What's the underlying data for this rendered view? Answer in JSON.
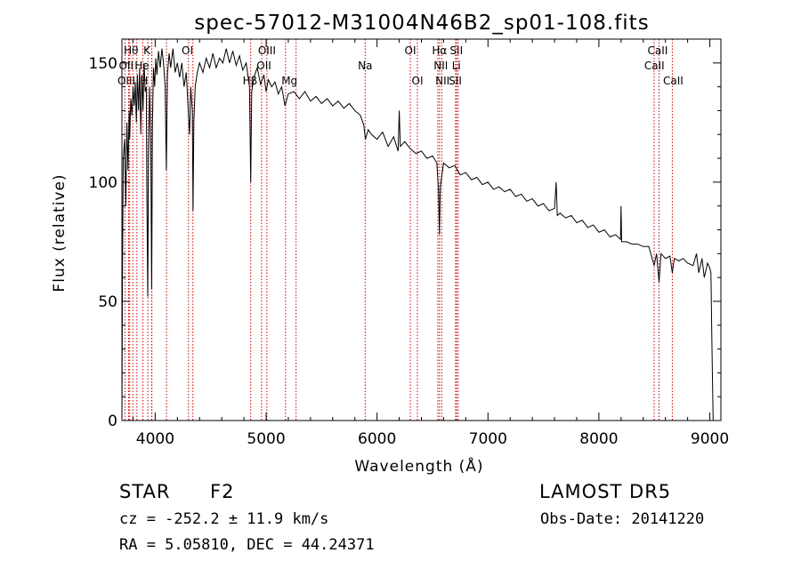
{
  "chart_data": {
    "type": "line",
    "title": "spec-57012-M31004N46B2_sp01-108.fits",
    "xlabel": "Wavelength (Å)",
    "ylabel": "Flux (relative)",
    "xlim": [
      3700,
      9100
    ],
    "ylim": [
      0,
      160
    ],
    "xticks": [
      4000,
      5000,
      6000,
      7000,
      8000,
      9000
    ],
    "yticks": [
      0,
      50,
      100,
      150
    ],
    "grid": false,
    "series": [
      {
        "points": [
          [
            3700,
            0
          ],
          [
            3705,
            60
          ],
          [
            3712,
            110
          ],
          [
            3725,
            118
          ],
          [
            3735,
            90
          ],
          [
            3745,
            125
          ],
          [
            3755,
            105
          ],
          [
            3765,
            130
          ],
          [
            3770,
            118
          ],
          [
            3780,
            135
          ],
          [
            3790,
            128
          ],
          [
            3800,
            140
          ],
          [
            3810,
            132
          ],
          [
            3820,
            142
          ],
          [
            3830,
            125
          ],
          [
            3840,
            145
          ],
          [
            3850,
            130
          ],
          [
            3860,
            148
          ],
          [
            3870,
            120
          ],
          [
            3880,
            145
          ],
          [
            3890,
            130
          ],
          [
            3900,
            150
          ],
          [
            3910,
            138
          ],
          [
            3920,
            140
          ],
          [
            3925,
            95
          ],
          [
            3933,
            52
          ],
          [
            3940,
            110
          ],
          [
            3950,
            140
          ],
          [
            3960,
            118
          ],
          [
            3968,
            55
          ],
          [
            3975,
            125
          ],
          [
            3985,
            148
          ],
          [
            3995,
            140
          ],
          [
            4005,
            152
          ],
          [
            4015,
            145
          ],
          [
            4030,
            155
          ],
          [
            4045,
            148
          ],
          [
            4060,
            156
          ],
          [
            4075,
            150
          ],
          [
            4090,
            140
          ],
          [
            4100,
            105
          ],
          [
            4110,
            145
          ],
          [
            4125,
            154
          ],
          [
            4140,
            148
          ],
          [
            4160,
            156
          ],
          [
            4180,
            146
          ],
          [
            4200,
            150
          ],
          [
            4220,
            144
          ],
          [
            4240,
            150
          ],
          [
            4260,
            140
          ],
          [
            4280,
            146
          ],
          [
            4300,
            128
          ],
          [
            4310,
            120
          ],
          [
            4320,
            140
          ],
          [
            4335,
            130
          ],
          [
            4341,
            88
          ],
          [
            4348,
            125
          ],
          [
            4360,
            140
          ],
          [
            4380,
            146
          ],
          [
            4400,
            150
          ],
          [
            4430,
            146
          ],
          [
            4460,
            152
          ],
          [
            4490,
            148
          ],
          [
            4520,
            154
          ],
          [
            4550,
            148
          ],
          [
            4580,
            152
          ],
          [
            4610,
            150
          ],
          [
            4640,
            156
          ],
          [
            4670,
            150
          ],
          [
            4700,
            155
          ],
          [
            4730,
            149
          ],
          [
            4760,
            153
          ],
          [
            4790,
            147
          ],
          [
            4820,
            150
          ],
          [
            4850,
            140
          ],
          [
            4861,
            100
          ],
          [
            4870,
            138
          ],
          [
            4890,
            144
          ],
          [
            4920,
            148
          ],
          [
            4950,
            141
          ],
          [
            4980,
            145
          ],
          [
            5000,
            138
          ],
          [
            5020,
            143
          ],
          [
            5050,
            140
          ],
          [
            5080,
            142
          ],
          [
            5110,
            137
          ],
          [
            5140,
            140
          ],
          [
            5170,
            132
          ],
          [
            5200,
            137
          ],
          [
            5250,
            138
          ],
          [
            5300,
            135
          ],
          [
            5350,
            138
          ],
          [
            5400,
            134
          ],
          [
            5450,
            136
          ],
          [
            5500,
            133
          ],
          [
            5550,
            135
          ],
          [
            5600,
            132
          ],
          [
            5650,
            134
          ],
          [
            5700,
            131
          ],
          [
            5750,
            133
          ],
          [
            5800,
            130
          ],
          [
            5850,
            128
          ],
          [
            5880,
            124
          ],
          [
            5895,
            118
          ],
          [
            5920,
            122
          ],
          [
            5950,
            120
          ],
          [
            6000,
            118
          ],
          [
            6050,
            121
          ],
          [
            6100,
            115
          ],
          [
            6150,
            119
          ],
          [
            6190,
            113
          ],
          [
            6200,
            130
          ],
          [
            6210,
            115
          ],
          [
            6250,
            117
          ],
          [
            6300,
            114
          ],
          [
            6350,
            112
          ],
          [
            6400,
            113
          ],
          [
            6450,
            110
          ],
          [
            6500,
            111
          ],
          [
            6540,
            108
          ],
          [
            6555,
            95
          ],
          [
            6563,
            78
          ],
          [
            6570,
            98
          ],
          [
            6600,
            108
          ],
          [
            6650,
            106
          ],
          [
            6700,
            107
          ],
          [
            6750,
            103
          ],
          [
            6800,
            104
          ],
          [
            6850,
            101
          ],
          [
            6900,
            102
          ],
          [
            6950,
            99
          ],
          [
            7000,
            100
          ],
          [
            7050,
            97
          ],
          [
            7100,
            98
          ],
          [
            7150,
            96
          ],
          [
            7200,
            97
          ],
          [
            7250,
            94
          ],
          [
            7300,
            95
          ],
          [
            7350,
            92
          ],
          [
            7400,
            93
          ],
          [
            7450,
            90
          ],
          [
            7500,
            91
          ],
          [
            7550,
            88
          ],
          [
            7600,
            89
          ],
          [
            7615,
            100
          ],
          [
            7625,
            86
          ],
          [
            7650,
            87
          ],
          [
            7700,
            85
          ],
          [
            7750,
            86
          ],
          [
            7800,
            83
          ],
          [
            7850,
            84
          ],
          [
            7900,
            81
          ],
          [
            7950,
            82
          ],
          [
            8000,
            79
          ],
          [
            8050,
            80
          ],
          [
            8100,
            77
          ],
          [
            8150,
            78
          ],
          [
            8195,
            76
          ],
          [
            8200,
            90
          ],
          [
            8205,
            75
          ],
          [
            8250,
            75
          ],
          [
            8300,
            74
          ],
          [
            8350,
            74
          ],
          [
            8400,
            73
          ],
          [
            8450,
            73
          ],
          [
            8498,
            65
          ],
          [
            8520,
            70
          ],
          [
            8542,
            58
          ],
          [
            8560,
            70
          ],
          [
            8600,
            68
          ],
          [
            8640,
            69
          ],
          [
            8662,
            62
          ],
          [
            8680,
            68
          ],
          [
            8720,
            67
          ],
          [
            8760,
            68
          ],
          [
            8800,
            66
          ],
          [
            8850,
            65
          ],
          [
            8880,
            70
          ],
          [
            8900,
            62
          ],
          [
            8930,
            68
          ],
          [
            8950,
            60
          ],
          [
            8980,
            66
          ],
          [
            9000,
            64
          ],
          [
            9010,
            62
          ],
          [
            9020,
            30
          ],
          [
            9030,
            0
          ]
        ]
      }
    ],
    "line_markers": [
      {
        "label": "Hθ",
        "x": 3798,
        "row": 1,
        "label_x": 3783
      },
      {
        "label": "K",
        "x": 3934,
        "row": 1,
        "label_x": 3925
      },
      {
        "label": "OII",
        "x": 3727,
        "row": 2,
        "label_x": 3738
      },
      {
        "label": "He",
        "x": 3889,
        "row": 2,
        "label_x": 3880
      },
      {
        "label": "OIII",
        "x": 3760,
        "row": 3,
        "label_x": 3740
      },
      {
        "label": "H",
        "x": 3968,
        "row": 3,
        "label_x": 3900
      },
      {
        "label": "OI",
        "x": 4300,
        "row": 1,
        "label_x": 4290
      },
      {
        "label": "OIII",
        "x": 5007,
        "row": 1,
        "label_x": 5007
      },
      {
        "label": "OII",
        "x": 4959,
        "row": 2,
        "label_x": 4980
      },
      {
        "label": "Hβ",
        "x": 4861,
        "row": 3,
        "label_x": 4855
      },
      {
        "label": "Mg",
        "x": 5175,
        "row": 3,
        "label_x": 5210
      },
      {
        "label": "Na",
        "x": 5893,
        "row": 2,
        "label_x": 5893
      },
      {
        "label": "OI",
        "x": 6300,
        "row": 1,
        "label_x": 6300
      },
      {
        "label": "OI",
        "x": 6364,
        "row": 3,
        "label_x": 6364
      },
      {
        "label": "Hα",
        "x": 6563,
        "row": 1,
        "label_x": 6563
      },
      {
        "label": "SII",
        "x": 6717,
        "row": 1,
        "label_x": 6715
      },
      {
        "label": "NII",
        "x": 6583,
        "row": 2,
        "label_x": 6575
      },
      {
        "label": "Li",
        "x": 6708,
        "row": 2,
        "label_x": 6715
      },
      {
        "label": "NII",
        "x": 6548,
        "row": 3,
        "label_x": 6590
      },
      {
        "label": "SII",
        "x": 6731,
        "row": 3,
        "label_x": 6705
      },
      {
        "label": "CaII",
        "x": 8498,
        "row": 1,
        "label_x": 8530
      },
      {
        "label": "CaII",
        "x": 8542,
        "row": 2,
        "label_x": 8500
      },
      {
        "label": "CaII",
        "x": 8662,
        "row": 3,
        "label_x": 8670
      }
    ],
    "marker_extra_lines": [
      3770,
      3835,
      3970,
      4102,
      4340,
      5270
    ]
  },
  "info": {
    "object_class": "STAR",
    "subclass": "F2",
    "survey": "LAMOST DR5",
    "velocity": "cz = -252.2 ± 11.9 km/s",
    "obs_date": "Obs-Date: 20141220",
    "coords": "RA =   5.05810, DEC =  44.24371"
  },
  "colors": {
    "spectrum": "#000000",
    "marker_line": "#cc0000",
    "background": "#ffffff"
  }
}
